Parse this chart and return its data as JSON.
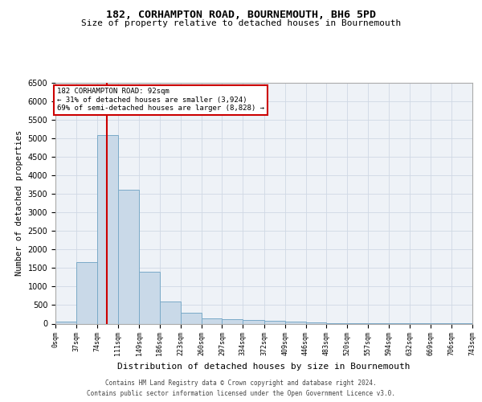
{
  "title1": "182, CORHAMPTON ROAD, BOURNEMOUTH, BH6 5PD",
  "title2": "Size of property relative to detached houses in Bournemouth",
  "xlabel": "Distribution of detached houses by size in Bournemouth",
  "ylabel": "Number of detached properties",
  "bin_labels": [
    "0sqm",
    "37sqm",
    "74sqm",
    "111sqm",
    "149sqm",
    "186sqm",
    "223sqm",
    "260sqm",
    "297sqm",
    "334sqm",
    "372sqm",
    "409sqm",
    "446sqm",
    "483sqm",
    "520sqm",
    "557sqm",
    "594sqm",
    "632sqm",
    "669sqm",
    "706sqm",
    "743sqm"
  ],
  "bin_edges": [
    0,
    37,
    74,
    111,
    149,
    186,
    223,
    260,
    297,
    334,
    372,
    409,
    446,
    483,
    520,
    557,
    594,
    632,
    669,
    706,
    743
  ],
  "bar_heights": [
    50,
    1650,
    5080,
    3600,
    1400,
    600,
    300,
    150,
    120,
    100,
    70,
    50,
    30,
    20,
    10,
    5,
    5,
    3,
    2,
    1,
    1
  ],
  "bar_color": "#c9d9e8",
  "bar_edgecolor": "#7aaac8",
  "vline_x": 92,
  "vline_color": "#cc0000",
  "ylim": [
    0,
    6500
  ],
  "yticks": [
    0,
    500,
    1000,
    1500,
    2000,
    2500,
    3000,
    3500,
    4000,
    4500,
    5000,
    5500,
    6000,
    6500
  ],
  "annotation_text": "182 CORHAMPTON ROAD: 92sqm\n← 31% of detached houses are smaller (3,924)\n69% of semi-detached houses are larger (8,828) →",
  "annotation_box_color": "#cc0000",
  "grid_color": "#d0d8e4",
  "background_color": "#eef2f7",
  "footer1": "Contains HM Land Registry data © Crown copyright and database right 2024.",
  "footer2": "Contains public sector information licensed under the Open Government Licence v3.0."
}
